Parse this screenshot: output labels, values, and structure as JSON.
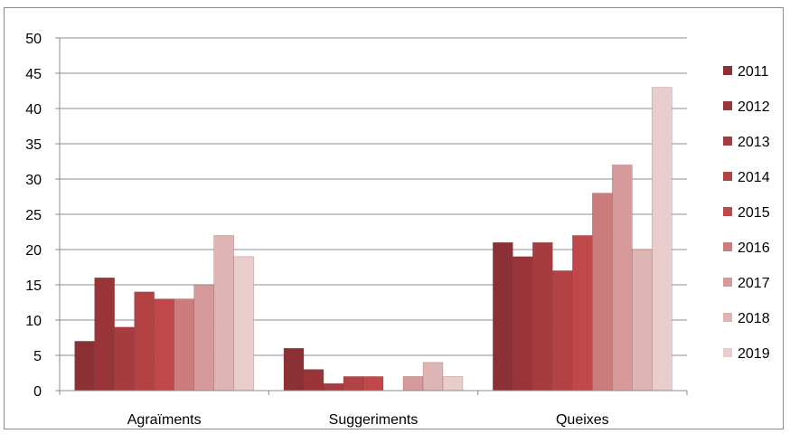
{
  "chart_data": {
    "type": "bar",
    "categories": [
      "Agraïments",
      "Suggeriments",
      "Queixes"
    ],
    "series": [
      {
        "name": "2011",
        "color": "#8b3035",
        "values": [
          7,
          6,
          21
        ]
      },
      {
        "name": "2012",
        "color": "#993538",
        "values": [
          16,
          3,
          19
        ]
      },
      {
        "name": "2013",
        "color": "#a63c3f",
        "values": [
          9,
          1,
          21
        ]
      },
      {
        "name": "2014",
        "color": "#b24244",
        "values": [
          14,
          2,
          17
        ]
      },
      {
        "name": "2015",
        "color": "#c0484a",
        "values": [
          13,
          2,
          22
        ]
      },
      {
        "name": "2016",
        "color": "#cd7c7e",
        "values": [
          13,
          0,
          28
        ]
      },
      {
        "name": "2017",
        "color": "#d69a9b",
        "values": [
          15,
          2,
          32
        ]
      },
      {
        "name": "2018",
        "color": "#deb5b5",
        "values": [
          22,
          4,
          20
        ]
      },
      {
        "name": "2019",
        "color": "#e9cccc",
        "values": [
          19,
          2,
          43
        ]
      }
    ],
    "yticks": [
      "0",
      "5",
      "10",
      "15",
      "20",
      "25",
      "30",
      "35",
      "40",
      "45",
      "50"
    ],
    "ylim": [
      0,
      50
    ],
    "grid": true,
    "legend_position": "right"
  }
}
